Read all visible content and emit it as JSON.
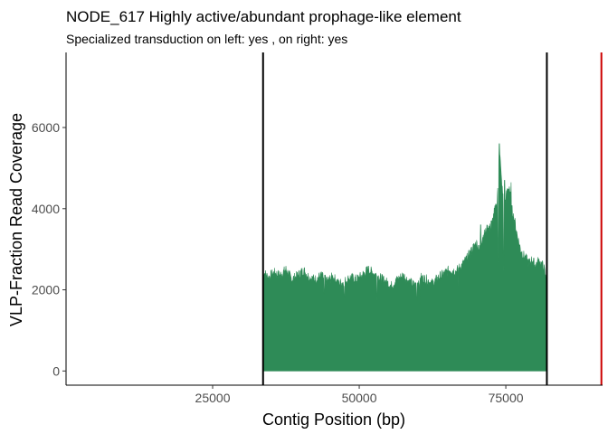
{
  "chart_data": {
    "type": "area",
    "title": "NODE_617 Highly active/abundant prophage-like element",
    "subtitle": "Specialized transduction on left: yes , on right: yes",
    "xlabel": "Contig Position (bp)",
    "ylabel": "VLP-Fraction Read Coverage",
    "xlim": [
      0,
      91500
    ],
    "ylim": [
      -350,
      7850
    ],
    "x_ticks": [
      25000,
      50000,
      75000
    ],
    "y_ticks": [
      0,
      2000,
      4000,
      6000
    ],
    "x_tick_labels": [
      "25000",
      "50000",
      "75000"
    ],
    "y_tick_labels": [
      "0",
      "2000",
      "4000",
      "6000"
    ],
    "grid": false,
    "legend": "none",
    "series": [
      {
        "fill_color": "#2e8b57",
        "x": [
          33600,
          34500,
          35500,
          36500,
          37500,
          38500,
          39500,
          40500,
          41500,
          42500,
          43500,
          44500,
          45500,
          46500,
          47500,
          48500,
          49500,
          50500,
          51500,
          52500,
          53500,
          54500,
          55500,
          56500,
          57500,
          58500,
          59500,
          60500,
          61500,
          62500,
          63500,
          64500,
          65500,
          66500,
          67500,
          68500,
          69500,
          70000,
          70500,
          71000,
          71500,
          72000,
          72500,
          73000,
          73500,
          73900,
          74200,
          74500,
          74800,
          75200,
          75600,
          76000,
          76500,
          77000,
          77500,
          78000,
          78500,
          79000,
          79500,
          80000,
          80500,
          81000,
          81500,
          82000
        ],
        "y": [
          2450,
          2300,
          2420,
          2350,
          2500,
          2250,
          2350,
          2480,
          2300,
          2250,
          2350,
          2200,
          2320,
          2150,
          2200,
          2300,
          2250,
          2350,
          2500,
          2400,
          2300,
          2200,
          2100,
          2250,
          2350,
          2200,
          2100,
          2300,
          2250,
          2150,
          2300,
          2400,
          2500,
          2450,
          2600,
          2800,
          3050,
          3150,
          3000,
          3300,
          3400,
          3550,
          3500,
          3900,
          4100,
          5600,
          4800,
          4300,
          4100,
          4400,
          4550,
          4000,
          3700,
          3300,
          3000,
          2850,
          2750,
          2650,
          2750,
          2600,
          2700,
          2650,
          2550,
          2100
        ]
      }
    ],
    "vlines": [
      {
        "x": 33600,
        "color": "#000000"
      },
      {
        "x": 82000,
        "color": "#000000"
      },
      {
        "x": 91300,
        "color": "#cc0000"
      }
    ]
  }
}
